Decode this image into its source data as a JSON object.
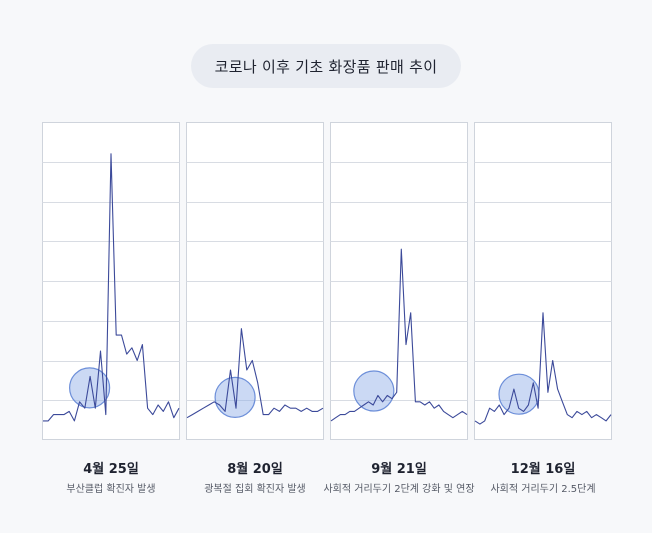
{
  "title": "코로나 이후 기초 화장품 판매 추이",
  "chart_data": {
    "type": "line",
    "title": "코로나 이후 기초 화장품 판매 추이",
    "ylim": [
      0,
      100
    ],
    "grid": true,
    "panels": [
      {
        "date": "4월 25일",
        "label": "부산클럽 확진자 발생",
        "highlight_index": 7,
        "values": [
          6,
          6,
          8,
          8,
          8,
          9,
          6,
          12,
          10,
          20,
          10,
          28,
          8,
          90,
          33,
          33,
          27,
          29,
          25,
          30,
          10,
          8,
          11,
          9,
          12,
          7,
          10
        ]
      },
      {
        "date": "8월 20일",
        "label": "광복절 집회 확진자 발생",
        "highlight_index": 7,
        "values": [
          7,
          8,
          9,
          10,
          11,
          12,
          11,
          9,
          22,
          10,
          35,
          22,
          25,
          18,
          8,
          8,
          10,
          9,
          11,
          10,
          10,
          9,
          10,
          9,
          9,
          10
        ]
      },
      {
        "date": "9월 21일",
        "label": "사회적 거리두기 2단계 강화 및 연장",
        "highlight_index": 7,
        "values": [
          6,
          7,
          8,
          8,
          9,
          9,
          10,
          11,
          12,
          11,
          14,
          12,
          14,
          13,
          15,
          60,
          30,
          40,
          12,
          12,
          11,
          12,
          10,
          11,
          9,
          8,
          7,
          8,
          9,
          8
        ]
      },
      {
        "date": "12월 16일",
        "label": "사회적 거리두기 2.5단계",
        "highlight_index": 7,
        "values": [
          6,
          5,
          6,
          10,
          9,
          11,
          8,
          10,
          16,
          10,
          9,
          11,
          18,
          10,
          40,
          15,
          25,
          16,
          12,
          8,
          7,
          9,
          8,
          9,
          7,
          8,
          7,
          6,
          8
        ]
      }
    ]
  }
}
